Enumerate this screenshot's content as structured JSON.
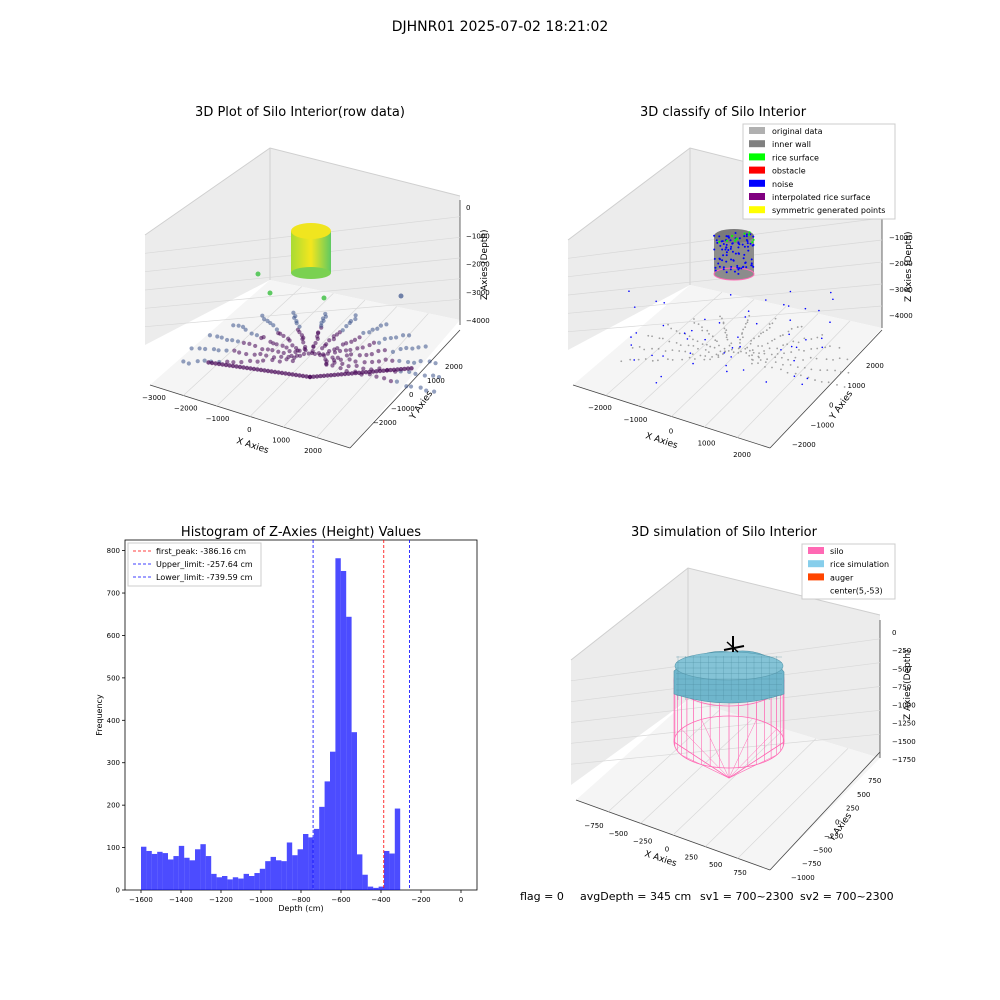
{
  "figure": {
    "suptitle": "DJHNR01 2025-07-02 18:21:02",
    "status_line": {
      "flag": "flag = 0",
      "avg_depth": "avgDepth = 345 cm",
      "sv1": "sv1 = 700~2300",
      "sv2": "sv2 = 700~2300"
    }
  },
  "chart_data": [
    {
      "type": "scatter",
      "projection": "3d",
      "title": "3D Plot of Silo Interior(row data)",
      "xlabel": "X Axies",
      "ylabel": "Y Axies",
      "zlabel": "Z Axies (Depth)",
      "x_ticks": [
        "−3000",
        "−2000",
        "−1000",
        "0",
        "1000",
        "2000"
      ],
      "y_ticks": [
        "−2000",
        "−1000",
        "0",
        "1000",
        "2000"
      ],
      "z_ticks": [
        "0",
        "−1000",
        "−2000",
        "−3000",
        "−4000"
      ],
      "colormap": [
        "#440154",
        "#3b528b",
        "#21918c",
        "#5ec962",
        "#fde725"
      ]
    },
    {
      "type": "scatter",
      "projection": "3d",
      "title": "3D classify of Silo Interior",
      "xlabel": "X Axies",
      "ylabel": "Y Axies",
      "zlabel": "Z Axies (Depth)",
      "x_ticks": [
        "−2000",
        "−1000",
        "0",
        "1000",
        "2000"
      ],
      "y_ticks": [
        "−2000",
        "−1000",
        "0",
        "1000",
        "2000"
      ],
      "z_ticks": [
        "0",
        "−1000",
        "−2000",
        "−3000",
        "−4000"
      ],
      "legend_position": "top-right",
      "legend": [
        {
          "label": "original data",
          "color": "#b0b0b0"
        },
        {
          "label": "inner wall",
          "color": "#808080"
        },
        {
          "label": "rice surface",
          "color": "#00ff00"
        },
        {
          "label": "obstacle",
          "color": "#ff0000"
        },
        {
          "label": "noise",
          "color": "#0000ff"
        },
        {
          "label": "interpolated rice surface",
          "color": "#800080"
        },
        {
          "label": "symmetric generated points",
          "color": "#ffff00"
        }
      ]
    },
    {
      "type": "bar",
      "title": "Histogram of Z-Axies (Height) Values",
      "xlabel": "Depth (cm)",
      "ylabel": "Frequency",
      "bar_color": "#0000ff",
      "xlim": [
        -1680,
        80
      ],
      "ylim": [
        0,
        825
      ],
      "x_ticks": [
        -1600,
        -1400,
        -1200,
        -1000,
        -800,
        -600,
        -400,
        -200,
        0
      ],
      "x_tick_labels": [
        "−1600",
        "−1400",
        "−1200",
        "−1000",
        "−800",
        "−600",
        "−400",
        "−200",
        "0"
      ],
      "y_ticks": [
        0,
        100,
        200,
        300,
        400,
        500,
        600,
        700,
        800
      ],
      "bin_start": -1600,
      "bin_width": 27,
      "values": [
        102,
        92,
        85,
        90,
        87,
        72,
        80,
        104,
        76,
        70,
        96,
        108,
        80,
        38,
        30,
        33,
        25,
        30,
        27,
        38,
        33,
        40,
        50,
        68,
        78,
        70,
        68,
        112,
        82,
        96,
        132,
        124,
        144,
        196,
        256,
        326,
        782,
        752,
        644,
        372,
        84,
        36,
        8,
        5,
        8,
        92,
        86,
        192
      ],
      "vlines": [
        {
          "x": -386.16,
          "color": "#ff0000",
          "label": "first_peak: -386.16 cm"
        },
        {
          "x": -257.64,
          "color": "#0000ff",
          "label": "Upper_limit: -257.64 cm"
        },
        {
          "x": -739.59,
          "color": "#0000ff",
          "label": "Lower_limit: -739.59 cm"
        }
      ],
      "legend_position": "top-left"
    },
    {
      "type": "surface",
      "projection": "3d",
      "title": "3D simulation of Silo Interior",
      "xlabel": "X Axies",
      "ylabel": "Y Axies",
      "zlabel": "Z Axies (Depth)",
      "x_ticks": [
        "−750",
        "−500",
        "−250",
        "0",
        "250",
        "500",
        "750"
      ],
      "y_ticks": [
        "−1000",
        "−750",
        "−500",
        "−250",
        "0",
        "250",
        "500",
        "750"
      ],
      "z_ticks": [
        "0",
        "−250",
        "−500",
        "−750",
        "−1000",
        "−1250",
        "−1500",
        "−1750"
      ],
      "legend_position": "top-right",
      "legend": [
        {
          "label": "silo",
          "color": "#ff69b4"
        },
        {
          "label": "rice simulation",
          "color": "#87ceeb"
        },
        {
          "label": "auger",
          "color": "#ff4500"
        },
        {
          "label": "center(5,-53)",
          "color": ""
        }
      ]
    }
  ]
}
